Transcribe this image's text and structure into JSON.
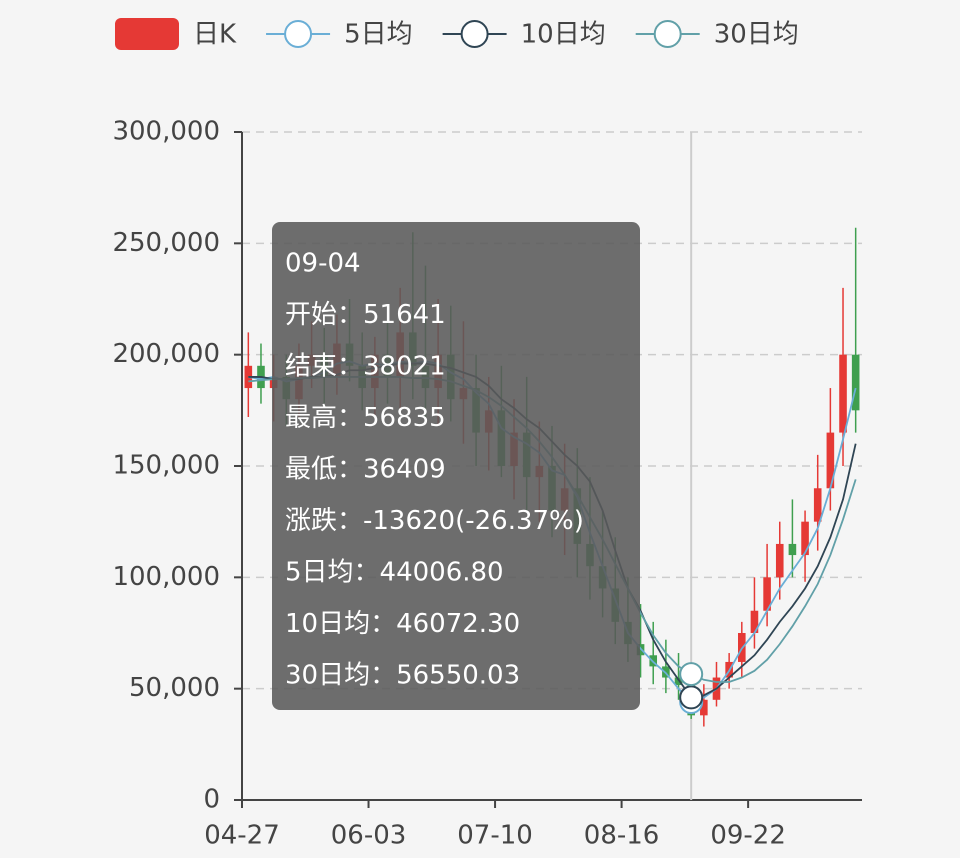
{
  "chart_data": {
    "type": "candlestick",
    "categories": [
      "04-27",
      null,
      null,
      null,
      null,
      null,
      null,
      null,
      null,
      null,
      "06-03",
      null,
      null,
      null,
      null,
      null,
      null,
      null,
      null,
      null,
      "07-10",
      null,
      null,
      null,
      null,
      null,
      null,
      null,
      null,
      null,
      "08-16",
      null,
      null,
      null,
      null,
      null,
      null,
      null,
      null,
      null,
      "09-22",
      null,
      null,
      null,
      null,
      null,
      null,
      null,
      null
    ],
    "ylim": [
      0,
      300000
    ],
    "yticks": [
      0,
      {
        "value": 50000,
        "label": "50,000"
      },
      {
        "value": 100000,
        "label": "100,000"
      },
      {
        "value": 150000,
        "label": "150,000"
      },
      {
        "value": 200000,
        "label": "200,000"
      },
      {
        "value": 250000,
        "label": "250,000"
      },
      {
        "value": 300000,
        "label": "300,000"
      }
    ],
    "grid": true,
    "legend": "top",
    "series": [
      {
        "name": "日K",
        "color": "#e53935",
        "down_color": "#3f9f4f",
        "open": [
          185000,
          195000,
          185000,
          190000,
          180000,
          195000,
          200000,
          190000,
          205000,
          195000,
          185000,
          200000,
          190000,
          210000,
          195000,
          185000,
          200000,
          180000,
          185000,
          165000,
          175000,
          150000,
          165000,
          145000,
          150000,
          130000,
          140000,
          115000,
          105000,
          95000,
          80000,
          70000,
          65000,
          60000,
          55000,
          51641,
          38021,
          45000,
          55000,
          62000,
          75000,
          85000,
          100000,
          115000,
          110000,
          125000,
          140000,
          165000,
          200000
        ],
        "high": [
          210000,
          205000,
          200000,
          200000,
          205000,
          215000,
          212000,
          218000,
          225000,
          210000,
          208000,
          215000,
          230000,
          255000,
          240000,
          225000,
          222000,
          215000,
          200000,
          190000,
          195000,
          180000,
          190000,
          170000,
          168000,
          160000,
          158000,
          145000,
          130000,
          118000,
          100000,
          88000,
          80000,
          72000,
          66000,
          56835,
          52000,
          62000,
          66000,
          80000,
          100000,
          115000,
          125000,
          135000,
          130000,
          155000,
          185000,
          230000,
          257000
        ],
        "low": [
          172000,
          178000,
          170000,
          168000,
          172000,
          185000,
          178000,
          182000,
          188000,
          175000,
          172000,
          178000,
          175000,
          180000,
          170000,
          168000,
          170000,
          160000,
          150000,
          148000,
          145000,
          135000,
          130000,
          125000,
          118000,
          110000,
          100000,
          90000,
          82000,
          70000,
          62000,
          55000,
          52000,
          48000,
          45000,
          36409,
          33000,
          42000,
          50000,
          55000,
          68000,
          78000,
          90000,
          100000,
          98000,
          112000,
          130000,
          150000,
          165000
        ],
        "close": [
          195000,
          185000,
          190000,
          180000,
          195000,
          200000,
          190000,
          205000,
          195000,
          185000,
          200000,
          190000,
          210000,
          195000,
          185000,
          200000,
          180000,
          185000,
          165000,
          175000,
          150000,
          165000,
          145000,
          150000,
          130000,
          140000,
          115000,
          105000,
          95000,
          80000,
          70000,
          65000,
          60000,
          55000,
          51641,
          38021,
          45000,
          55000,
          62000,
          75000,
          85000,
          100000,
          115000,
          110000,
          125000,
          140000,
          165000,
          200000,
          175000
        ]
      },
      {
        "name": "5日均",
        "color": "#6aaed6",
        "values": [
          190000,
          189000,
          190000,
          188000,
          189000,
          190000,
          192000,
          196000,
          197000,
          195000,
          196000,
          195000,
          197000,
          196000,
          197000,
          196000,
          192000,
          189000,
          183000,
          178000,
          167000,
          163000,
          160000,
          156000,
          148000,
          146000,
          136000,
          120000,
          105000,
          90000,
          75000,
          68000,
          62000,
          57000,
          50000,
          44006.8,
          46000,
          50000,
          58000,
          68000,
          75000,
          85000,
          95000,
          103000,
          111000,
          122000,
          140000,
          162000,
          185000
        ]
      },
      {
        "name": "10日均",
        "color": "#2f4554",
        "values": [
          190000,
          190000,
          189000,
          189000,
          189000,
          190000,
          190000,
          191000,
          193000,
          193000,
          194000,
          195000,
          196000,
          196000,
          196000,
          195000,
          194000,
          192000,
          190000,
          186000,
          180000,
          176000,
          171000,
          167000,
          161000,
          155000,
          150000,
          143000,
          130000,
          112000,
          95000,
          85000,
          72000,
          62000,
          54000,
          46072.3,
          47000,
          50000,
          55000,
          60000,
          65000,
          72000,
          80000,
          87000,
          95000,
          105000,
          118000,
          135000,
          160000
        ]
      },
      {
        "name": "30日均",
        "color": "#61a0a8",
        "values": [
          188000,
          188500,
          189000,
          189000,
          189500,
          189500,
          190000,
          190000,
          190000,
          190000,
          190000,
          190000,
          190000,
          189500,
          189500,
          189000,
          188000,
          186000,
          184000,
          181000,
          177000,
          172000,
          167000,
          161000,
          154000,
          146000,
          137000,
          127000,
          117000,
          106000,
          95000,
          84000,
          74000,
          66000,
          60000,
          56550.03,
          54000,
          53000,
          53000,
          55000,
          58000,
          63000,
          70000,
          78000,
          87000,
          97000,
          110000,
          126000,
          144000
        ]
      }
    ],
    "tooltip": {
      "index": 35,
      "rows": [
        "09-04",
        "开始：51641",
        "结束：38021",
        "最高：56835",
        "最低：36409",
        "涨跌：-13620(-26.37%)",
        "5日均：44006.80",
        "10日均：46072.30",
        "30日均：56550.03"
      ]
    }
  }
}
